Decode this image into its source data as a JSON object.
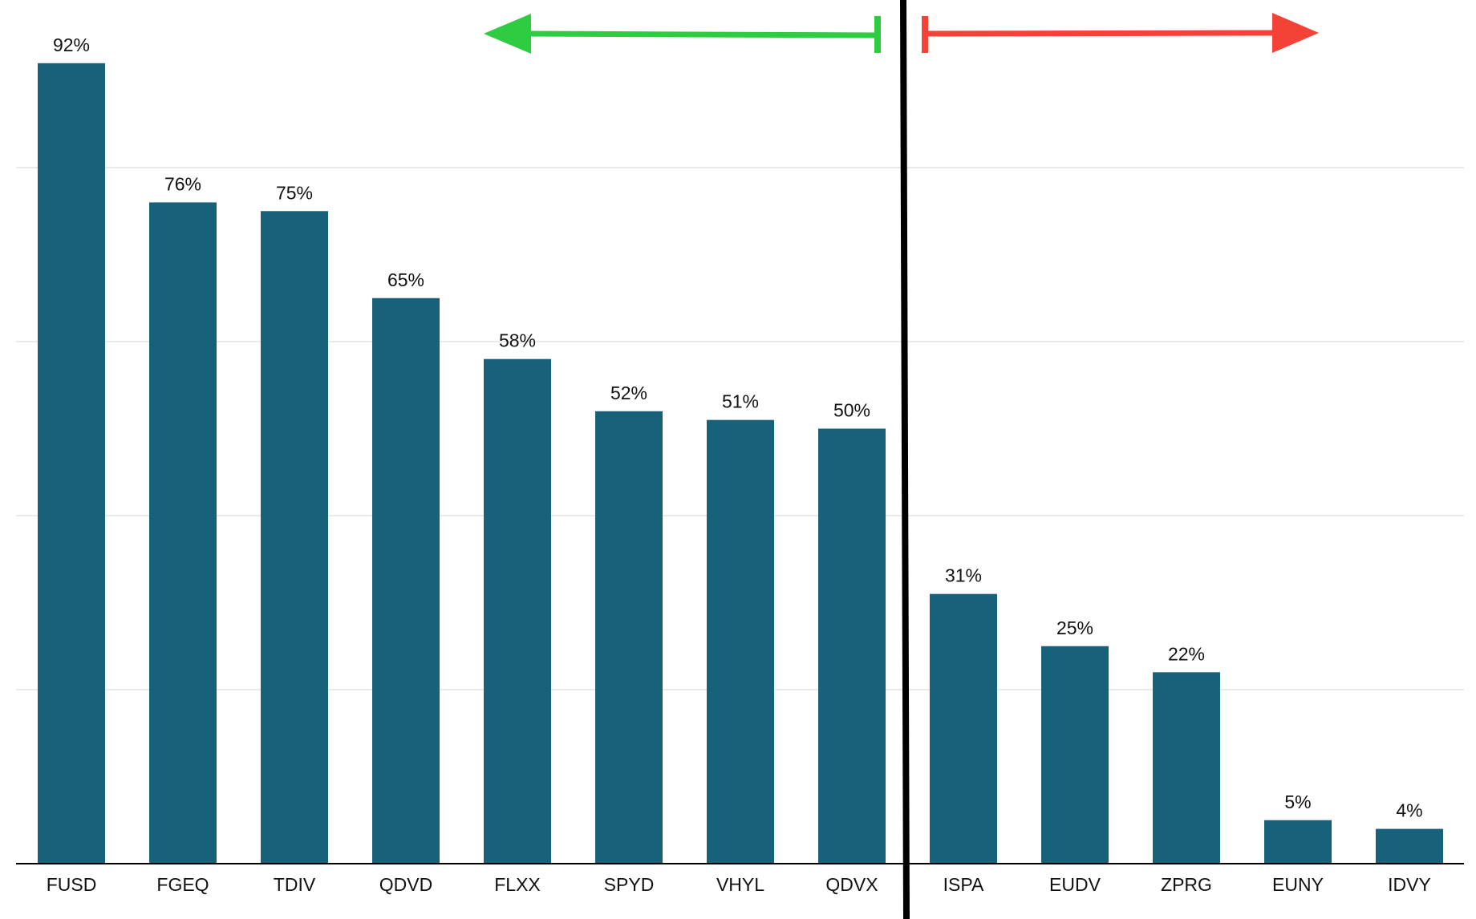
{
  "chart_data": {
    "type": "bar",
    "title": "",
    "xlabel": "",
    "ylabel": "",
    "ylim": [
      0,
      100
    ],
    "grid": true,
    "categories": [
      "FUSD",
      "FGEQ",
      "TDIV",
      "QDVD",
      "FLXX",
      "SPYD",
      "VHYL",
      "QDVX",
      "ISPA",
      "EUDV",
      "ZPRG",
      "EUNY",
      "IDVY"
    ],
    "values": [
      92,
      76,
      75,
      65,
      58,
      52,
      51,
      50,
      31,
      25,
      22,
      5,
      4
    ],
    "value_labels": [
      "92%",
      "76%",
      "75%",
      "65%",
      "58%",
      "52%",
      "51%",
      "50%",
      "31%",
      "25%",
      "22%",
      "5%",
      "4%"
    ],
    "annotations": {
      "divider_after_category": "QDVX",
      "left_arrow": {
        "direction": "left",
        "color": "#2ecc40"
      },
      "right_arrow": {
        "direction": "right",
        "color": "#f44336"
      }
    }
  },
  "colors": {
    "bar": "#17617b",
    "grid": "#e3e3e3",
    "axis": "#000000",
    "divider": "#000000"
  }
}
